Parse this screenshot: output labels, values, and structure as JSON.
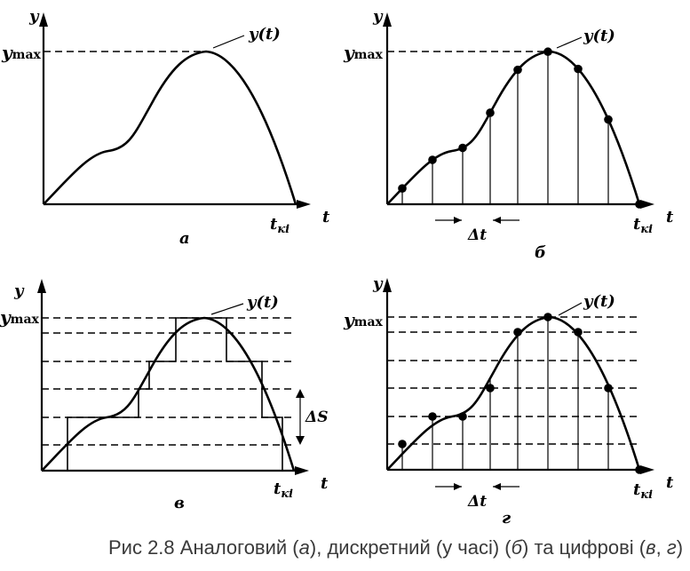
{
  "panels": [
    {
      "id": "a",
      "letter": "а",
      "y_axis": "y",
      "t_axis": "t",
      "ymax_label": "y",
      "ymax_sub": "max",
      "curve_label": "y(t)",
      "end_label": "t",
      "end_sub": "кі"
    },
    {
      "id": "b",
      "letter": "б",
      "y_axis": "y",
      "t_axis": "t",
      "ymax_label": "y",
      "ymax_sub": "max",
      "curve_label": "y(t)",
      "end_label": "t",
      "end_sub": "кі",
      "dt_label": "Δt"
    },
    {
      "id": "c",
      "letter": "в",
      "y_axis": "y",
      "t_axis": "t",
      "ymax_label": "y",
      "ymax_sub": "max",
      "curve_label": "y(t)",
      "end_label": "t",
      "end_sub": "кі",
      "ds_label": "ΔS"
    },
    {
      "id": "d",
      "letter": "г",
      "y_axis": "y",
      "t_axis": "t",
      "ymax_label": "y",
      "ymax_sub": "max",
      "curve_label": "y(t)",
      "end_label": "t",
      "end_sub": "кі",
      "dt_label": "Δt"
    }
  ],
  "caption": {
    "p1": "Рис 2.8 Аналоговий (",
    "a": "а",
    "p2": "), дискретний (у часі) (",
    "b": "б",
    "p3": ") та цифрові (",
    "c": "в",
    "p4": ", ",
    "d": "г",
    "p5": ")"
  }
}
